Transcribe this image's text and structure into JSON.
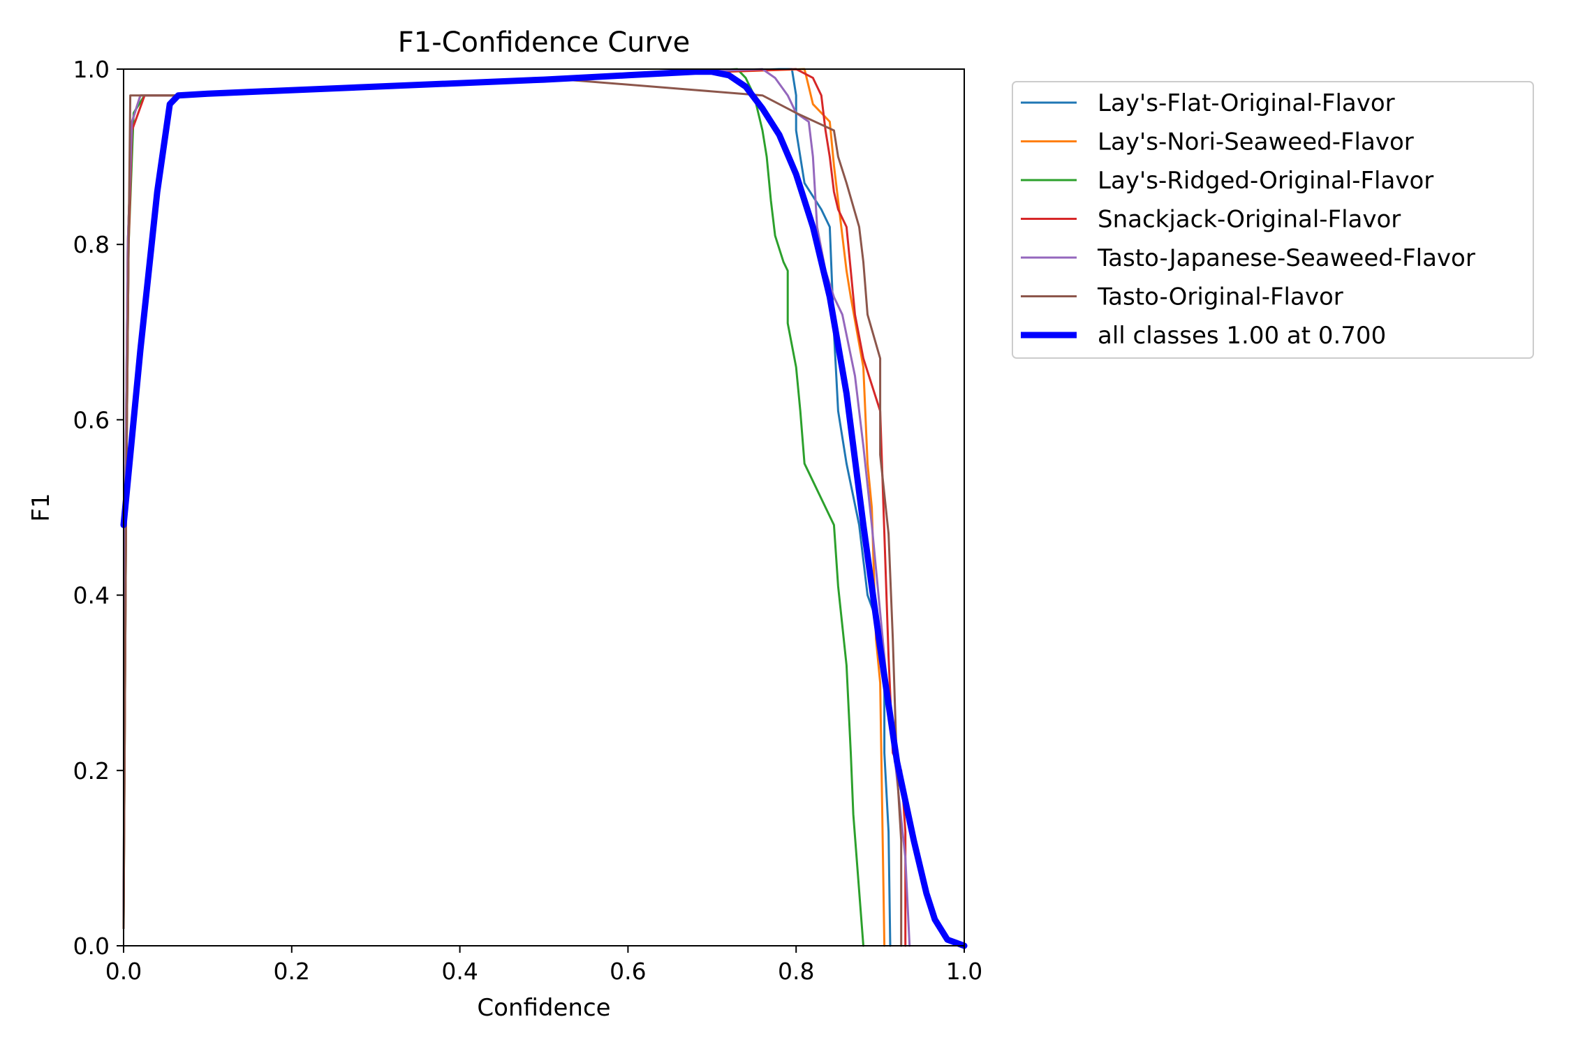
{
  "chart_data": {
    "type": "line",
    "title": "F1-Confidence Curve",
    "xlabel": "Confidence",
    "ylabel": "F1",
    "xlim": [
      0,
      1
    ],
    "ylim": [
      0,
      1
    ],
    "x_ticks": [
      "0.0",
      "0.2",
      "0.4",
      "0.6",
      "0.8",
      "1.0"
    ],
    "y_ticks": [
      "0.0",
      "0.2",
      "0.4",
      "0.6",
      "0.8",
      "1.0"
    ],
    "grid": false,
    "legend_position": "outside-top-right",
    "series": [
      {
        "name": "Lay's-Flat-Original-Flavor",
        "color": "#1f77b4",
        "points": [
          [
            0.0,
            0.03
          ],
          [
            0.002,
            0.5
          ],
          [
            0.005,
            0.8
          ],
          [
            0.01,
            0.94
          ],
          [
            0.02,
            0.97
          ],
          [
            0.06,
            0.97
          ],
          [
            0.5,
            0.99
          ],
          [
            0.78,
            1.0
          ],
          [
            0.795,
            1.0
          ],
          [
            0.8,
            0.97
          ],
          [
            0.8,
            0.93
          ],
          [
            0.81,
            0.87
          ],
          [
            0.83,
            0.84
          ],
          [
            0.84,
            0.82
          ],
          [
            0.845,
            0.7
          ],
          [
            0.85,
            0.61
          ],
          [
            0.86,
            0.55
          ],
          [
            0.875,
            0.48
          ],
          [
            0.885,
            0.4
          ],
          [
            0.9,
            0.36
          ],
          [
            0.905,
            0.3
          ],
          [
            0.905,
            0.22
          ],
          [
            0.91,
            0.13
          ],
          [
            0.912,
            0.0
          ]
        ]
      },
      {
        "name": "Lay's-Nori-Seaweed-Flavor",
        "color": "#ff7f0e",
        "points": [
          [
            0.0,
            0.03
          ],
          [
            0.002,
            0.5
          ],
          [
            0.005,
            0.8
          ],
          [
            0.01,
            0.94
          ],
          [
            0.02,
            0.97
          ],
          [
            0.06,
            0.97
          ],
          [
            0.5,
            0.99
          ],
          [
            0.81,
            1.0
          ],
          [
            0.815,
            0.98
          ],
          [
            0.82,
            0.96
          ],
          [
            0.84,
            0.94
          ],
          [
            0.845,
            0.89
          ],
          [
            0.85,
            0.85
          ],
          [
            0.86,
            0.77
          ],
          [
            0.865,
            0.74
          ],
          [
            0.88,
            0.66
          ],
          [
            0.885,
            0.55
          ],
          [
            0.89,
            0.5
          ],
          [
            0.895,
            0.35
          ],
          [
            0.9,
            0.3
          ],
          [
            0.905,
            0.0
          ]
        ]
      },
      {
        "name": "Lay's-Ridged-Original-Flavor",
        "color": "#2ca02c",
        "points": [
          [
            0.0,
            0.02
          ],
          [
            0.003,
            0.5
          ],
          [
            0.006,
            0.8
          ],
          [
            0.012,
            0.95
          ],
          [
            0.025,
            0.97
          ],
          [
            0.06,
            0.97
          ],
          [
            0.5,
            0.99
          ],
          [
            0.73,
            1.0
          ],
          [
            0.74,
            0.99
          ],
          [
            0.75,
            0.97
          ],
          [
            0.76,
            0.93
          ],
          [
            0.765,
            0.9
          ],
          [
            0.77,
            0.85
          ],
          [
            0.775,
            0.81
          ],
          [
            0.785,
            0.78
          ],
          [
            0.79,
            0.77
          ],
          [
            0.79,
            0.71
          ],
          [
            0.8,
            0.66
          ],
          [
            0.805,
            0.61
          ],
          [
            0.81,
            0.55
          ],
          [
            0.815,
            0.54
          ],
          [
            0.83,
            0.51
          ],
          [
            0.845,
            0.48
          ],
          [
            0.85,
            0.41
          ],
          [
            0.86,
            0.32
          ],
          [
            0.865,
            0.22
          ],
          [
            0.868,
            0.15
          ],
          [
            0.88,
            0.0
          ]
        ]
      },
      {
        "name": "Snackjack-Original-Flavor",
        "color": "#d62728",
        "points": [
          [
            0.0,
            0.03
          ],
          [
            0.003,
            0.5
          ],
          [
            0.006,
            0.8
          ],
          [
            0.01,
            0.93
          ],
          [
            0.025,
            0.97
          ],
          [
            0.06,
            0.97
          ],
          [
            0.5,
            0.99
          ],
          [
            0.8,
            1.0
          ],
          [
            0.82,
            0.99
          ],
          [
            0.83,
            0.97
          ],
          [
            0.835,
            0.93
          ],
          [
            0.84,
            0.9
          ],
          [
            0.845,
            0.86
          ],
          [
            0.85,
            0.84
          ],
          [
            0.86,
            0.82
          ],
          [
            0.865,
            0.77
          ],
          [
            0.87,
            0.72
          ],
          [
            0.88,
            0.67
          ],
          [
            0.9,
            0.61
          ],
          [
            0.905,
            0.47
          ],
          [
            0.91,
            0.33
          ],
          [
            0.915,
            0.22
          ],
          [
            0.925,
            0.2
          ],
          [
            0.93,
            0.13
          ],
          [
            0.93,
            0.0
          ]
        ]
      },
      {
        "name": "Tasto-Japanese-Seaweed-Flavor",
        "color": "#9467bd",
        "points": [
          [
            0.0,
            0.03
          ],
          [
            0.002,
            0.5
          ],
          [
            0.005,
            0.8
          ],
          [
            0.01,
            0.94
          ],
          [
            0.02,
            0.97
          ],
          [
            0.06,
            0.97
          ],
          [
            0.5,
            0.99
          ],
          [
            0.76,
            1.0
          ],
          [
            0.775,
            0.99
          ],
          [
            0.79,
            0.97
          ],
          [
            0.8,
            0.95
          ],
          [
            0.815,
            0.94
          ],
          [
            0.82,
            0.9
          ],
          [
            0.825,
            0.82
          ],
          [
            0.835,
            0.77
          ],
          [
            0.845,
            0.74
          ],
          [
            0.855,
            0.72
          ],
          [
            0.87,
            0.65
          ],
          [
            0.88,
            0.57
          ],
          [
            0.89,
            0.48
          ],
          [
            0.9,
            0.38
          ],
          [
            0.91,
            0.28
          ],
          [
            0.92,
            0.19
          ],
          [
            0.93,
            0.1
          ],
          [
            0.935,
            0.0
          ]
        ]
      },
      {
        "name": "Tasto-Original-Flavor",
        "color": "#8c564b",
        "points": [
          [
            0.0,
            0.02
          ],
          [
            0.003,
            0.5
          ],
          [
            0.006,
            0.8
          ],
          [
            0.008,
            0.97
          ],
          [
            0.06,
            0.97
          ],
          [
            0.5,
            0.99
          ],
          [
            0.76,
            0.97
          ],
          [
            0.8,
            0.95
          ],
          [
            0.845,
            0.93
          ],
          [
            0.85,
            0.9
          ],
          [
            0.86,
            0.87
          ],
          [
            0.875,
            0.82
          ],
          [
            0.88,
            0.78
          ],
          [
            0.885,
            0.72
          ],
          [
            0.9,
            0.67
          ],
          [
            0.9,
            0.56
          ],
          [
            0.91,
            0.47
          ],
          [
            0.915,
            0.35
          ],
          [
            0.92,
            0.2
          ],
          [
            0.925,
            0.12
          ],
          [
            0.925,
            0.0
          ]
        ]
      },
      {
        "name": "all classes 1.00 at 0.700",
        "color": "#0000ff",
        "bold": true,
        "points": [
          [
            0.0,
            0.48
          ],
          [
            0.02,
            0.68
          ],
          [
            0.04,
            0.86
          ],
          [
            0.055,
            0.96
          ],
          [
            0.065,
            0.97
          ],
          [
            0.1,
            0.972
          ],
          [
            0.3,
            0.98
          ],
          [
            0.5,
            0.988
          ],
          [
            0.6,
            0.993
          ],
          [
            0.68,
            0.997
          ],
          [
            0.7,
            0.997
          ],
          [
            0.72,
            0.993
          ],
          [
            0.74,
            0.98
          ],
          [
            0.76,
            0.955
          ],
          [
            0.78,
            0.925
          ],
          [
            0.8,
            0.88
          ],
          [
            0.82,
            0.82
          ],
          [
            0.84,
            0.74
          ],
          [
            0.86,
            0.63
          ],
          [
            0.88,
            0.48
          ],
          [
            0.9,
            0.34
          ],
          [
            0.92,
            0.21
          ],
          [
            0.94,
            0.12
          ],
          [
            0.955,
            0.06
          ],
          [
            0.965,
            0.03
          ],
          [
            0.98,
            0.007
          ],
          [
            1.0,
            0.0
          ]
        ]
      }
    ]
  }
}
